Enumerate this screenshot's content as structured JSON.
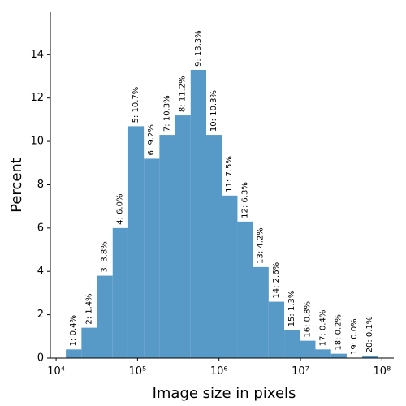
{
  "chart_data": {
    "type": "histogram",
    "xlabel": "Image size in pixels",
    "ylabel": "Percent",
    "bins": [
      13183,
      20494,
      31842,
      49488,
      76913,
      119512,
      185780,
      288735,
      448745,
      697424,
      1083927,
      1684581,
      2618183,
      4068803,
      6323523,
      9828059,
      15276000,
      23741000,
      36897000,
      57346000,
      89125000
    ],
    "values": [
      0.4,
      1.4,
      3.8,
      6.0,
      10.7,
      9.2,
      10.3,
      11.2,
      13.3,
      10.3,
      7.5,
      6.3,
      4.2,
      2.6,
      1.3,
      0.8,
      0.4,
      0.2,
      0.0,
      0.1
    ],
    "value_labels": [
      "1: 0.4%",
      "2: 1.4%",
      "3: 3.8%",
      "4: 6.0%",
      "5: 10.7%",
      "6: 9.2%",
      "7: 10.3%",
      "8: 11.2%",
      "9: 13.3%",
      "10: 10.3%",
      "11: 7.5%",
      "12: 6.3%",
      "13: 4.2%",
      "14: 2.6%",
      "15: 1.3%",
      "16: 0.8%",
      "17: 0.4%",
      "18: 0.2%",
      "19: 0.0%",
      "20: 0.1%"
    ],
    "color": "#5799c7",
    "xscale": "log",
    "xlim": [
      8500,
      140000000
    ],
    "xticks": [
      {
        "value": 10000,
        "label": "10⁴"
      },
      {
        "value": 100000,
        "label": "10⁵"
      },
      {
        "value": 1000000,
        "label": "10⁶"
      },
      {
        "value": 10000000,
        "label": "10⁷"
      },
      {
        "value": 100000000,
        "label": "10⁸"
      }
    ],
    "ylim": [
      0,
      15.96
    ],
    "yticks": [
      0,
      2,
      4,
      6,
      8,
      10,
      12,
      14
    ]
  }
}
